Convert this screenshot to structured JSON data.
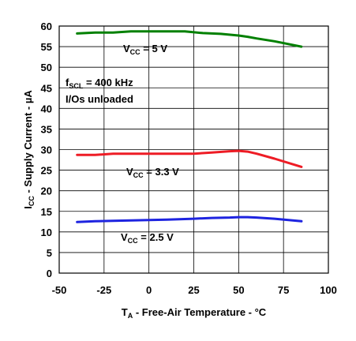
{
  "chart_data": {
    "type": "line",
    "xlabel": {
      "main": "T",
      "sub": "A",
      "rest": " - Free-Air Temperature - °C"
    },
    "ylabel": {
      "main": "I",
      "sub": "CC",
      "rest": " - Supply Current - µA"
    },
    "xlim": [
      -50,
      100
    ],
    "ylim": [
      0,
      60
    ],
    "xticks": [
      -50,
      -25,
      0,
      25,
      50,
      75,
      100
    ],
    "yticks": [
      0,
      5,
      10,
      15,
      20,
      25,
      30,
      35,
      40,
      45,
      50,
      55,
      60
    ],
    "grid": true,
    "series": [
      {
        "name": "VCC = 5 V",
        "label": {
          "main": "V",
          "sub": "CC",
          "rest": " = 5 V"
        },
        "color": "#008000",
        "x": [
          -40,
          -30,
          -20,
          -10,
          0,
          10,
          20,
          30,
          40,
          50,
          55,
          60,
          70,
          85
        ],
        "y": [
          58.2,
          58.4,
          58.4,
          58.7,
          58.7,
          58.7,
          58.7,
          58.3,
          58.1,
          57.7,
          57.4,
          57.0,
          56.3,
          55.0
        ]
      },
      {
        "name": "VCC = 3.3 V",
        "label": {
          "main": "V",
          "sub": "CC",
          "rest": " = 3.3 V"
        },
        "color": "#ee1c25",
        "x": [
          -40,
          -30,
          -20,
          -10,
          0,
          10,
          25,
          35,
          45,
          50,
          55,
          60,
          70,
          85
        ],
        "y": [
          28.7,
          28.7,
          29.0,
          29.0,
          29.0,
          29.0,
          29.0,
          29.3,
          29.6,
          29.7,
          29.5,
          29.0,
          27.8,
          25.8
        ]
      },
      {
        "name": "VCC = 2.5 V",
        "label": {
          "main": "V",
          "sub": "CC",
          "rest": " = 2.5 V"
        },
        "color": "#1e24e0",
        "x": [
          -40,
          -30,
          -20,
          -10,
          0,
          10,
          25,
          35,
          45,
          50,
          55,
          60,
          70,
          85
        ],
        "y": [
          12.4,
          12.6,
          12.7,
          12.8,
          12.9,
          13.0,
          13.2,
          13.4,
          13.5,
          13.6,
          13.6,
          13.5,
          13.2,
          12.6
        ]
      }
    ],
    "annotation": {
      "line1": {
        "main": "f",
        "sub": "SCL",
        "rest": " = 400 kHz"
      },
      "line2": "I/Os unloaded"
    }
  }
}
